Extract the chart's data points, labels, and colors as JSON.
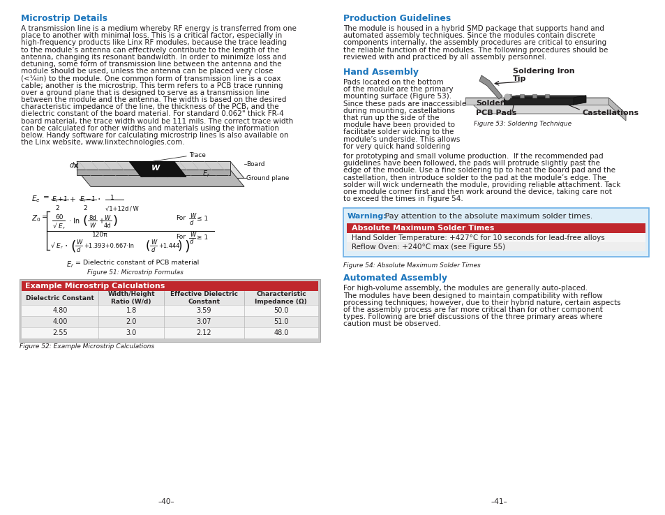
{
  "page_bg": "#ffffff",
  "blue_heading_color": "#1b75bc",
  "body_text_color": "#231f20",
  "red_color": "#c0272d",
  "light_blue_border": "#7ec8e3",
  "light_blue_fill": "#e8f4fb",
  "table_header_red": "#c0272d",
  "left_heading": "Microstrip Details",
  "left_body_1": "A transmission line is a medium whereby RF energy is transferred from one\nplace to another with minimal loss. This is a critical factor, especially in\nhigh-frequency products like Linx RF modules, because the trace leading\nto the module’s antenna can effectively contribute to the length of the\nantenna, changing its resonant bandwidth. In order to minimize loss and\ndetuning, some form of transmission line between the antenna and the\nmodule should be used, unless the antenna can be placed very close\n(<¼in) to the module. One common form of transmission line is a coax\ncable; another is the microstrip. This term refers to a PCB trace running\nover a ground plane that is designed to serve as a transmission line\nbetween the module and the antenna. The width is based on the desired\ncharacteristic impedance of the line, the thickness of the PCB, and the\ndielectric constant of the board material. For standard 0.062\" thick FR-4\nboard material, the trace width would be 111 mils. The correct trace width\ncan be calculated for other widths and materials using the information\nbelow. Handy software for calculating microstrip lines is also available on\nthe Linx website, www.linxtechnologies.com.",
  "fig51_caption": "Figure 51: Microstrip Formulas",
  "fig52_caption": "Figure 52: Example Microstrip Calculations",
  "table_title": "Example Microstrip Calculations",
  "table_headers": [
    "Dielectric Constant",
    "Width/Height\nRatio (W/d)",
    "Effective Dielectric\nConstant",
    "Characteristic\nImpedance (Ω)"
  ],
  "table_rows": [
    [
      "4.80",
      "1.8",
      "3.59",
      "50.0"
    ],
    [
      "4.00",
      "2.0",
      "3.07",
      "51.0"
    ],
    [
      "2.55",
      "3.0",
      "2.12",
      "48.0"
    ]
  ],
  "page_num_left": "–40–",
  "right_heading": "Production Guidelines",
  "right_body_1": "The module is housed in a hybrid SMD package that supports hand and\nautomated assembly techniques. Since the modules contain discrete\ncomponents internally, the assembly procedures are critical to ensuring\nthe reliable function of the modules. The following procedures should be\nreviewed with and practiced by all assembly personnel.",
  "hand_assembly_heading": "Hand Assembly",
  "hand_assembly_left": "Pads located on the bottom\nof the module are the primary\nmounting surface (Figure 53).\nSince these pads are inaccessible\nduring mounting, castellations\nthat run up the side of the\nmodule have been provided to\nfacilitate solder wicking to the\nmodule’s underside. This allows\nfor very quick hand soldering",
  "hand_assembly_body2": "for prototyping and small volume production.  If the recommended pad\nguidelines have been followed, the pads will protrude slightly past the\nedge of the module. Use a fine soldering tip to heat the board pad and the\ncastellation, then introduce solder to the pad at the module’s edge. The\nsolder will wick underneath the module, providing reliable attachment. Tack\none module corner first and then work around the device, taking care not\nto exceed the times in Figure 54.",
  "fig53_caption": "Figure 53: Soldering Technique",
  "solder_table_title": "Absolute Maximum Solder Times",
  "solder_row1": "Hand Solder Temperature: +427°C for 10 seconds for lead-free alloys",
  "solder_row2": "Reflow Oven: +240°C max (see Figure 55)",
  "fig54_caption": "Figure 54: Absolute Maximum Solder Times",
  "auto_assembly_heading": "Automated Assembly",
  "auto_assembly_body": "For high-volume assembly, the modules are generally auto-placed.\nThe modules have been designed to maintain compatibility with reflow\nprocessing techniques; however, due to their hybrid nature, certain aspects\nof the assembly process are far more critical than for other component\ntypes. Following are brief discussions of the three primary areas where\ncaution must be observed.",
  "page_num_right": "–41–"
}
